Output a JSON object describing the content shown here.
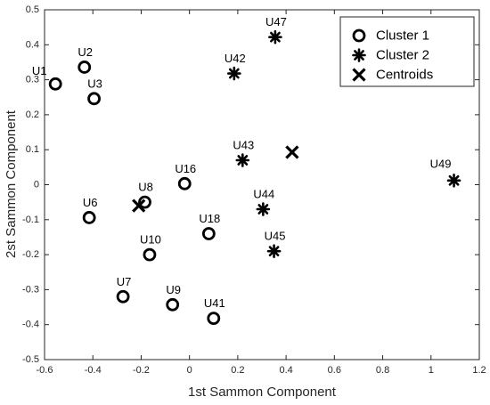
{
  "chart_data": {
    "type": "scatter",
    "title": "",
    "xlabel": "1st Sammon Component",
    "ylabel": "2st Sammon Component",
    "xlim": [
      -0.6,
      1.2
    ],
    "ylim": [
      -0.5,
      0.5
    ],
    "xticks": [
      -0.6,
      -0.4,
      -0.2,
      0,
      0.2,
      0.4,
      0.6,
      0.8,
      1,
      1.2
    ],
    "yticks": [
      -0.5,
      -0.4,
      -0.3,
      -0.2,
      -0.1,
      0,
      0.1,
      0.2,
      0.3,
      0.4,
      0.5
    ],
    "xtick_labels": [
      "-0.6",
      "-0.4",
      "-0.2",
      "0",
      "0.2",
      "0.4",
      "0.6",
      "0.8",
      "1",
      "1.2"
    ],
    "ytick_labels": [
      "-0.5",
      "-0.4",
      "-0.3",
      "-0.2",
      "-0.1",
      "0",
      "0.1",
      "0.2",
      "0.3",
      "0.4",
      "0.5"
    ],
    "grid": false,
    "legend_position": "top-right",
    "series": [
      {
        "name": "Cluster 1",
        "marker": "circle",
        "points": [
          {
            "label": "U1",
            "x": -0.555,
            "y": 0.288
          },
          {
            "label": "U2",
            "x": -0.435,
            "y": 0.336
          },
          {
            "label": "U3",
            "x": -0.395,
            "y": 0.246
          },
          {
            "label": "U6",
            "x": -0.415,
            "y": -0.094
          },
          {
            "label": "U7",
            "x": -0.275,
            "y": -0.32
          },
          {
            "label": "U8",
            "x": -0.185,
            "y": -0.05
          },
          {
            "label": "U9",
            "x": -0.07,
            "y": -0.343
          },
          {
            "label": "U10",
            "x": -0.165,
            "y": -0.2
          },
          {
            "label": "U16",
            "x": -0.02,
            "y": 0.003
          },
          {
            "label": "U18",
            "x": 0.08,
            "y": -0.14
          },
          {
            "label": "U41",
            "x": 0.1,
            "y": -0.382
          }
        ]
      },
      {
        "name": "Cluster 2",
        "marker": "asterisk",
        "points": [
          {
            "label": "U42",
            "x": 0.185,
            "y": 0.318
          },
          {
            "label": "U47",
            "x": 0.355,
            "y": 0.422
          },
          {
            "label": "U43",
            "x": 0.22,
            "y": 0.07
          },
          {
            "label": "U44",
            "x": 0.305,
            "y": -0.07
          },
          {
            "label": "U45",
            "x": 0.35,
            "y": -0.19
          },
          {
            "label": "U49",
            "x": 1.095,
            "y": 0.012
          }
        ]
      },
      {
        "name": "Centroids",
        "marker": "x",
        "points": [
          {
            "label": "",
            "x": -0.21,
            "y": -0.06
          },
          {
            "label": "",
            "x": 0.425,
            "y": 0.093
          }
        ]
      }
    ]
  },
  "colors": {
    "marker": "#000000",
    "axis": "#262626",
    "background": "#ffffff"
  }
}
